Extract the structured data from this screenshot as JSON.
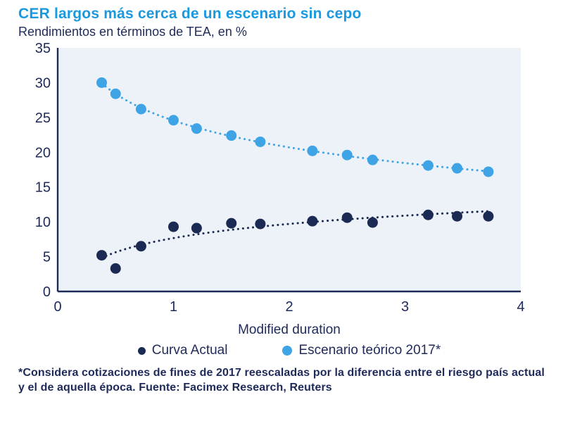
{
  "header": {
    "title": "CER largos más cerca de un escenario sin cepo",
    "subtitle": "Rendimientos en términos de TEA, en %"
  },
  "chart_data": {
    "type": "scatter",
    "title": "CER largos más cerca de un escenario sin cepo",
    "xlabel": "Modified duration",
    "ylabel": "",
    "xlim": [
      0,
      4
    ],
    "ylim": [
      0,
      35
    ],
    "x_ticks": [
      0,
      1,
      2,
      3,
      4
    ],
    "y_ticks": [
      0,
      5,
      10,
      15,
      20,
      25,
      30,
      35
    ],
    "grid": false,
    "legend_position": "bottom",
    "plot_background": "#EDF2F8",
    "axis_color": "#1E2A5A",
    "x": [
      0.38,
      0.5,
      0.72,
      1.0,
      1.2,
      1.5,
      1.75,
      2.2,
      2.5,
      2.72,
      3.2,
      3.45,
      3.72
    ],
    "series": [
      {
        "name": "Curva Actual",
        "color": "#1B2A52",
        "trend": "log-dotted",
        "values": [
          5.2,
          3.3,
          6.5,
          9.3,
          9.1,
          9.8,
          9.7,
          10.1,
          10.6,
          9.9,
          11.0,
          10.8,
          10.8
        ]
      },
      {
        "name": "Escenario teórico 2017*",
        "color": "#3EA4E6",
        "trend": "log-dotted",
        "values": [
          30.0,
          28.4,
          26.2,
          24.6,
          23.4,
          22.4,
          21.5,
          20.2,
          19.6,
          18.9,
          18.1,
          17.7,
          17.2
        ]
      }
    ]
  },
  "footnote": "*Considera cotizaciones de fines de 2017 reescaladas por la diferencia entre el riesgo país actual y el de aquella época. Fuente: Facimex Research, Reuters",
  "colors": {
    "title": "#1999E0",
    "text": "#1E2A5A",
    "plot_bg": "#EDF2F8"
  }
}
